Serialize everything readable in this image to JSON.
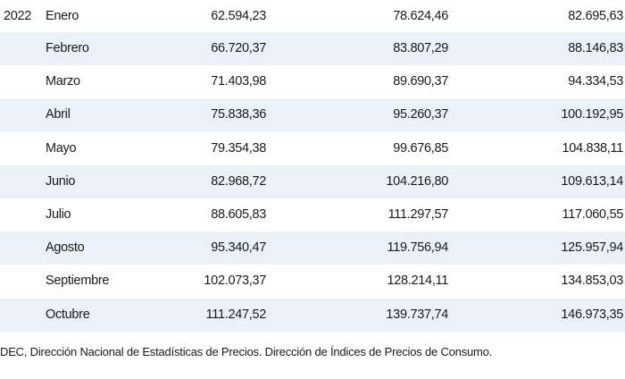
{
  "table": {
    "year": "2022",
    "rows": [
      {
        "month": "Enero",
        "v1": "62.594,23",
        "v2": "78.624,46",
        "v3": "82.695,63"
      },
      {
        "month": "Febrero",
        "v1": "66.720,37",
        "v2": "83.807,29",
        "v3": "88.146,83"
      },
      {
        "month": "Marzo",
        "v1": "71.403,98",
        "v2": "89.690,37",
        "v3": "94.334,53"
      },
      {
        "month": "Abril",
        "v1": "75.838,36",
        "v2": "95.260,37",
        "v3": "100.192,95"
      },
      {
        "month": "Mayo",
        "v1": "79.354,38",
        "v2": "99.676,85",
        "v3": "104.838,11"
      },
      {
        "month": "Junio",
        "v1": "82.968,72",
        "v2": "104.216,80",
        "v3": "109.613,14"
      },
      {
        "month": "Julio",
        "v1": "88.605,83",
        "v2": "111.297,57",
        "v3": "117.060,55"
      },
      {
        "month": "Agosto",
        "v1": "95.340,47",
        "v2": "119.756,94",
        "v3": "125.957,94"
      },
      {
        "month": "Septiembre",
        "v1": "102.073,37",
        "v2": "128.214,11",
        "v3": "134.853,03"
      },
      {
        "month": "Octubre",
        "v1": "111.247,52",
        "v2": "139.737,74",
        "v3": "146.973,35"
      }
    ]
  },
  "footer": {
    "source": "DEC, Dirección Nacional de Estadísticas de Precios. Dirección de Índices de Precios de Consumo."
  }
}
